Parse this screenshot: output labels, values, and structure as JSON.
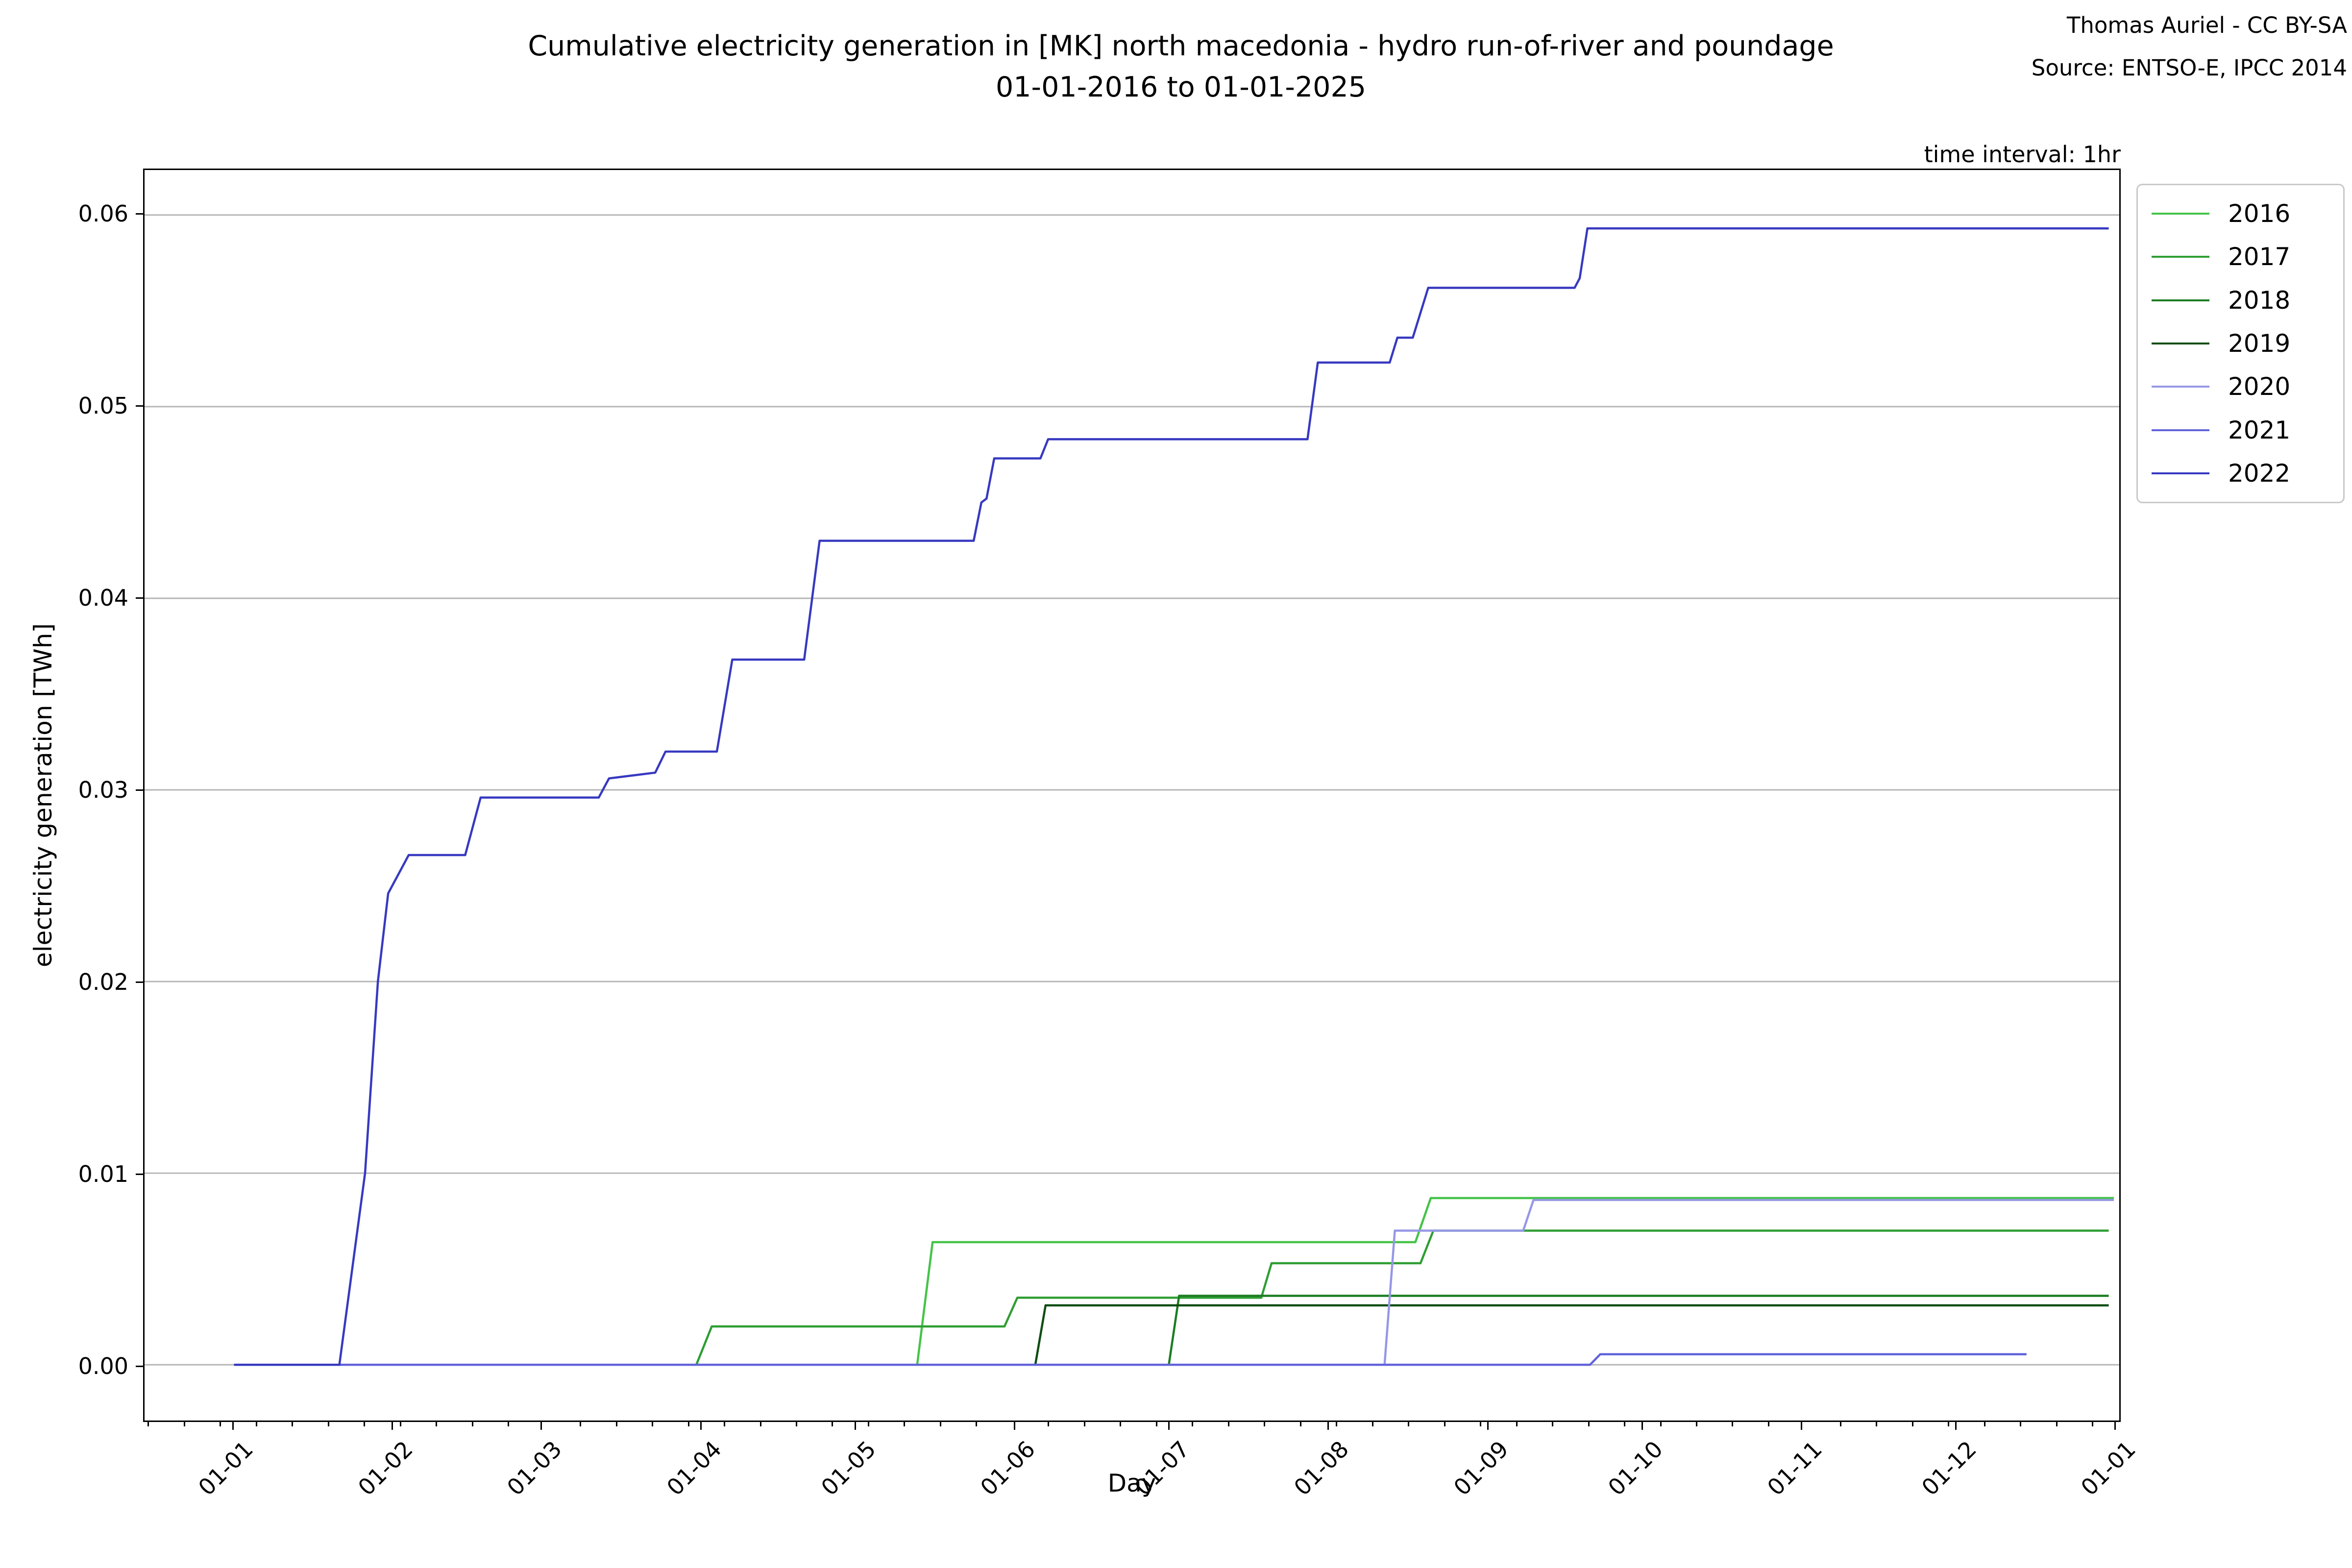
{
  "title": {
    "line1": "Cumulative electricity generation in [MK] north macedonia - hydro run-of-river and poundage",
    "line2": "01-01-2016 to 01-01-2025"
  },
  "attribution": {
    "line1": "Thomas Auriel - CC BY-SA",
    "line2": "Source: ENTSO-E, IPCC 2014"
  },
  "time_interval_note": "time interval: 1hr",
  "chart_data": {
    "type": "line",
    "title": "Cumulative electricity generation in [MK] north macedonia - hydro run-of-river and poundage 01-01-2016 to 01-01-2025",
    "xlabel": "Day",
    "ylabel": "electricity generation [TWh]",
    "grid": true,
    "grid_color": "#b6b6b6",
    "legend_position": "upper right",
    "x_axis": {
      "tick_labels": [
        "01-01",
        "01-02",
        "01-03",
        "01-04",
        "01-05",
        "01-06",
        "01-07",
        "01-08",
        "01-09",
        "01-10",
        "01-11",
        "01-12",
        "01-01"
      ],
      "tick_days": [
        0,
        31,
        60,
        91,
        121,
        152,
        182,
        213,
        244,
        274,
        305,
        335,
        366
      ],
      "minor_tick_interval_days": 7,
      "range_days": [
        -17.4,
        367
      ]
    },
    "y_axis": {
      "tick_labels": [
        "0.00",
        "0.01",
        "0.02",
        "0.03",
        "0.04",
        "0.05",
        "0.06"
      ],
      "tick_values": [
        0.0,
        0.01,
        0.02,
        0.03,
        0.04,
        0.05,
        0.06
      ],
      "range": [
        -0.0029,
        0.0623
      ]
    },
    "series": [
      {
        "name": "2016",
        "color": "#45c349",
        "points": [
          [
            0,
            0
          ],
          [
            133,
            0
          ],
          [
            136,
            0.0064
          ],
          [
            230,
            0.0064
          ],
          [
            233,
            0.0087
          ],
          [
            366,
            0.0087
          ]
        ]
      },
      {
        "name": "2017",
        "color": "#2f9e33",
        "points": [
          [
            0,
            0
          ],
          [
            90,
            0
          ],
          [
            93,
            0.002
          ],
          [
            150,
            0.002
          ],
          [
            152.5,
            0.0035
          ],
          [
            200,
            0.0035
          ],
          [
            202,
            0.0053
          ],
          [
            231,
            0.0053
          ],
          [
            233.5,
            0.007
          ],
          [
            365,
            0.007
          ]
        ]
      },
      {
        "name": "2018",
        "color": "#1d7d21",
        "points": [
          [
            0,
            0
          ],
          [
            182,
            0
          ],
          [
            184,
            0.0036
          ],
          [
            365,
            0.0036
          ]
        ]
      },
      {
        "name": "2019",
        "color": "#0e4e13",
        "points": [
          [
            0,
            0
          ],
          [
            156,
            0
          ],
          [
            158,
            0.0031
          ],
          [
            365,
            0.0031
          ]
        ]
      },
      {
        "name": "2020",
        "color": "#9697e7",
        "points": [
          [
            0,
            0
          ],
          [
            224,
            0
          ],
          [
            226,
            0.007
          ],
          [
            251,
            0.007
          ],
          [
            253,
            0.0086
          ],
          [
            366,
            0.0086
          ]
        ]
      },
      {
        "name": "2021",
        "color": "#6263da",
        "points": [
          [
            0,
            0
          ],
          [
            264,
            0
          ],
          [
            266,
            0.00055
          ],
          [
            349,
            0.00055
          ]
        ]
      },
      {
        "name": "2022",
        "color": "#3739c0",
        "points": [
          [
            0,
            0
          ],
          [
            20.5,
            0
          ],
          [
            23,
            0.005
          ],
          [
            25.5,
            0.01
          ],
          [
            28,
            0.02
          ],
          [
            30,
            0.0246
          ],
          [
            34,
            0.0266
          ],
          [
            45,
            0.0266
          ],
          [
            48,
            0.0296
          ],
          [
            71,
            0.0296
          ],
          [
            73,
            0.0306
          ],
          [
            82,
            0.0309
          ],
          [
            84,
            0.032
          ],
          [
            94,
            0.032
          ],
          [
            97,
            0.0368
          ],
          [
            111,
            0.0368
          ],
          [
            114,
            0.043
          ],
          [
            144,
            0.043
          ],
          [
            145.5,
            0.045
          ],
          [
            146.5,
            0.0452
          ],
          [
            148,
            0.0473
          ],
          [
            157,
            0.0473
          ],
          [
            158.5,
            0.0483
          ],
          [
            209,
            0.0483
          ],
          [
            211,
            0.0523
          ],
          [
            225,
            0.0523
          ],
          [
            226.5,
            0.0536
          ],
          [
            229.5,
            0.0536
          ],
          [
            232.5,
            0.0562
          ],
          [
            261,
            0.0562
          ],
          [
            262,
            0.0567
          ],
          [
            263.5,
            0.0593
          ],
          [
            365,
            0.0593
          ]
        ]
      }
    ]
  }
}
